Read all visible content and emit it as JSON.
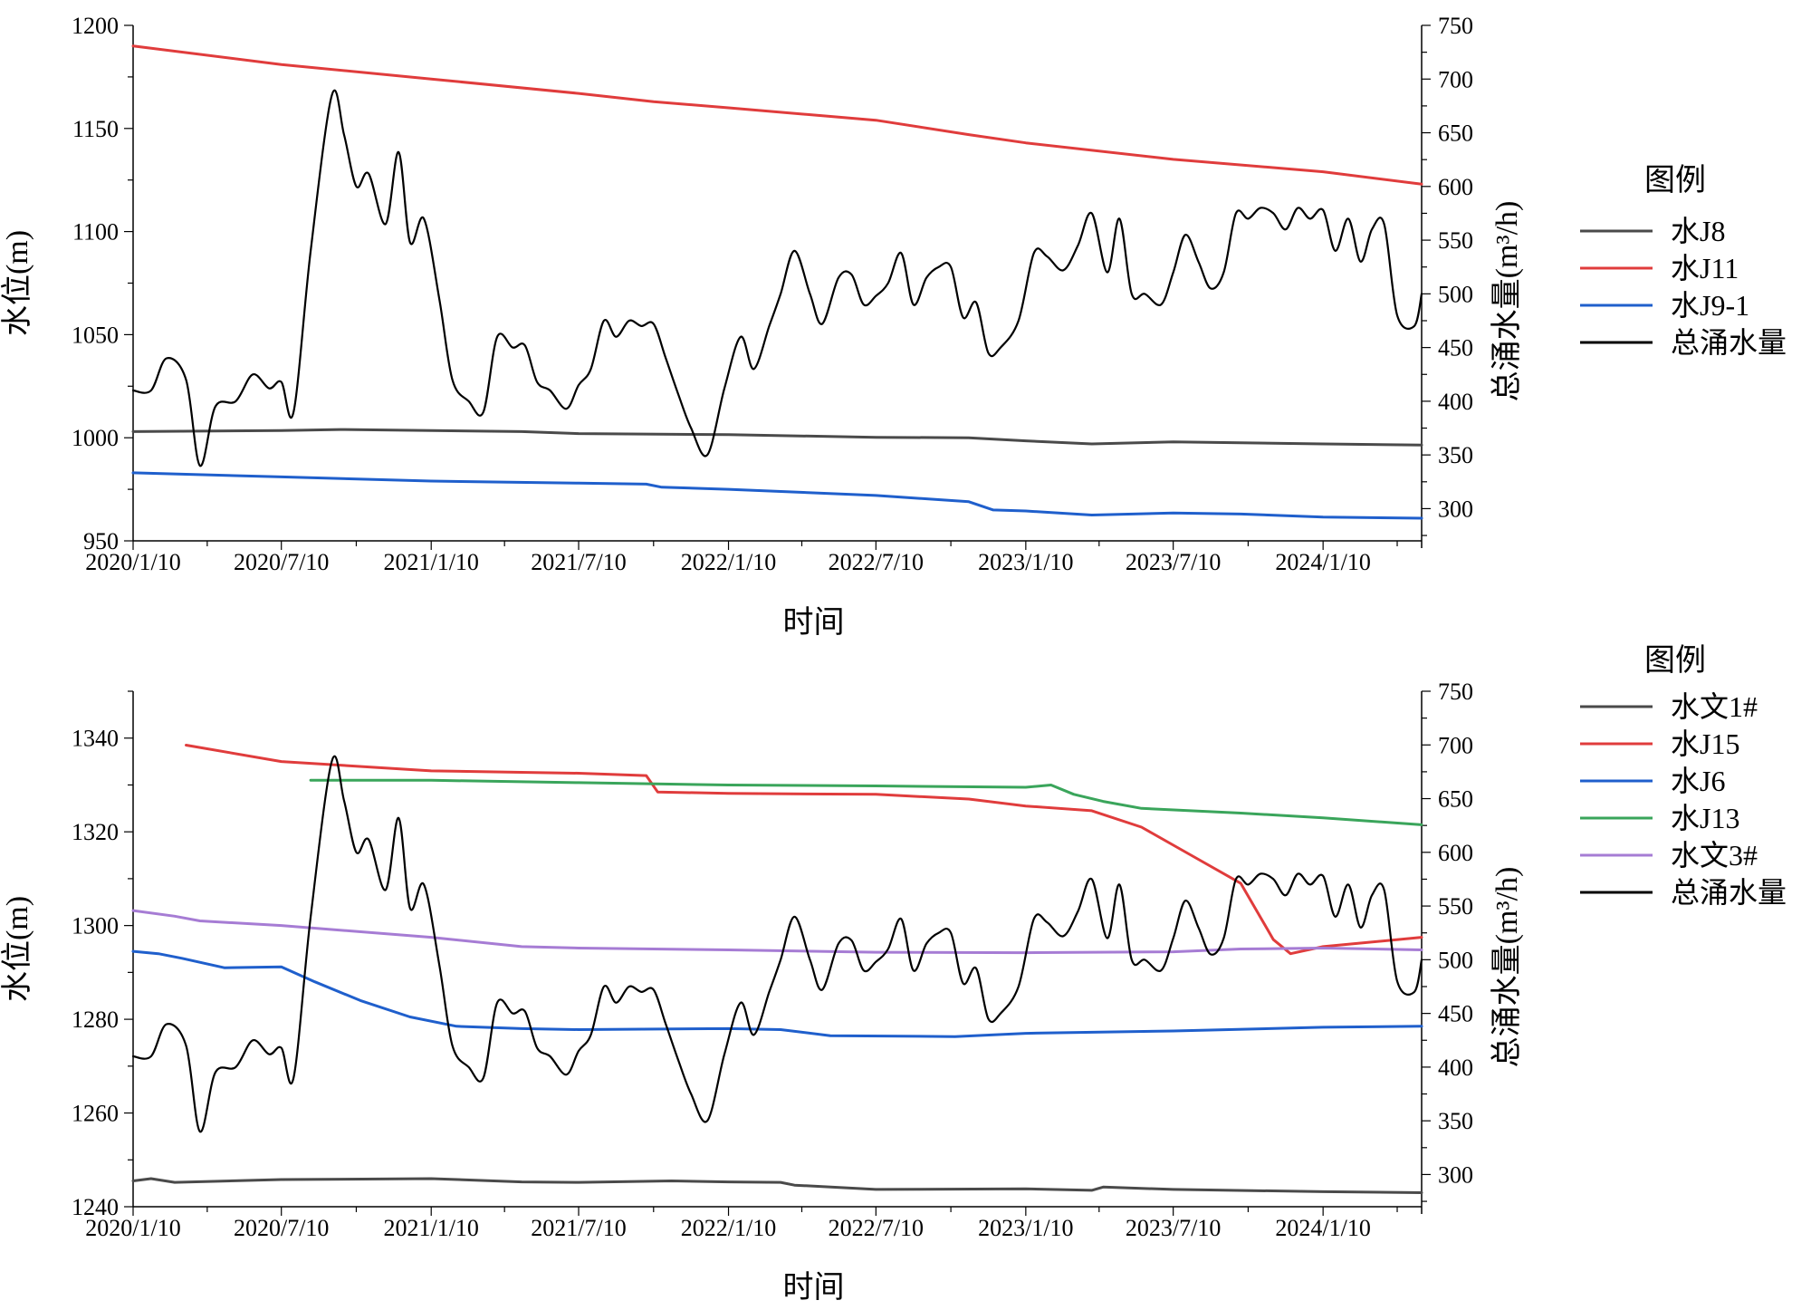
{
  "chart_data": [
    {
      "type": "line",
      "xlabel": "时间",
      "ylabel_left": "水位(m)",
      "ylabel_right": "总涌水量(m³/h)",
      "x_range": [
        "2020-01-10",
        "2024-05-10"
      ],
      "x_ticks": [
        "2020/1/10",
        "2020/7/10",
        "2021/1/10",
        "2021/7/10",
        "2022/1/10",
        "2022/7/10",
        "2023/1/10",
        "2023/7/10",
        "2024/1/10"
      ],
      "ylim_left": [
        950,
        1200
      ],
      "yticks_left": [
        950,
        1000,
        1050,
        1100,
        1150,
        1200
      ],
      "ylim_right": [
        270,
        750
      ],
      "yticks_right": [
        300,
        350,
        400,
        450,
        500,
        550,
        600,
        650,
        700,
        750
      ],
      "legend_title": "图例",
      "legend_position": "right",
      "grid": false,
      "series": [
        {
          "name": "水J8",
          "axis": "left",
          "color": "#4a4a4a",
          "x": [
            "2020-01-10",
            "2020-07-10",
            "2020-09-20",
            "2021-01-10",
            "2021-05-01",
            "2021-07-10",
            "2022-01-10",
            "2022-07-10",
            "2022-11-01",
            "2023-01-10",
            "2023-04-01",
            "2023-07-10",
            "2024-01-10",
            "2024-05-10"
          ],
          "y": [
            1003,
            1003.5,
            1004,
            1003.5,
            1003,
            1002,
            1001.5,
            1000.2,
            1000,
            998.5,
            997,
            998,
            997,
            996.5
          ]
        },
        {
          "name": "水J11",
          "axis": "left",
          "color": "#e03c3c",
          "x": [
            "2020-01-10",
            "2020-07-10",
            "2021-01-10",
            "2021-07-10",
            "2021-10-10",
            "2022-01-10",
            "2022-07-10",
            "2022-11-01",
            "2023-01-10",
            "2023-07-10",
            "2024-01-10",
            "2024-05-10"
          ],
          "y": [
            1190,
            1181,
            1174,
            1167,
            1163,
            1160,
            1154,
            1147,
            1143,
            1135,
            1129,
            1123
          ]
        },
        {
          "name": "水J9-1",
          "axis": "left",
          "color": "#1f5fcc",
          "x": [
            "2020-01-10",
            "2020-07-10",
            "2021-01-10",
            "2021-07-10",
            "2021-10-01",
            "2021-10-20",
            "2022-01-10",
            "2022-07-10",
            "2022-11-01",
            "2022-12-01",
            "2023-01-10",
            "2023-04-01",
            "2023-07-10",
            "2023-10-01",
            "2024-01-10",
            "2024-05-10"
          ],
          "y": [
            983,
            981,
            979,
            978,
            977.5,
            976,
            975,
            972,
            969,
            965,
            964.5,
            962.5,
            963.5,
            963,
            961.5,
            961
          ]
        },
        {
          "name": "总涌水量",
          "axis": "right",
          "color": "#000000",
          "x": [
            "2020-01-10",
            "2020-02-01",
            "2020-02-20",
            "2020-03-15",
            "2020-04-01",
            "2020-04-20",
            "2020-05-15",
            "2020-06-05",
            "2020-06-25",
            "2020-07-10",
            "2020-07-25",
            "2020-08-15",
            "2020-09-10",
            "2020-09-25",
            "2020-10-10",
            "2020-10-25",
            "2020-11-15",
            "2020-12-01",
            "2020-12-15",
            "2021-01-01",
            "2021-01-20",
            "2021-02-05",
            "2021-02-25",
            "2021-03-15",
            "2021-04-01",
            "2021-04-20",
            "2021-05-05",
            "2021-05-20",
            "2021-06-05",
            "2021-06-25",
            "2021-07-10",
            "2021-07-25",
            "2021-08-10",
            "2021-08-25",
            "2021-09-10",
            "2021-09-25",
            "2021-10-10",
            "2021-10-25",
            "2021-11-10",
            "2021-11-25",
            "2021-12-15",
            "2022-01-05",
            "2022-01-25",
            "2022-02-10",
            "2022-03-01",
            "2022-03-15",
            "2022-04-01",
            "2022-04-20",
            "2022-05-05",
            "2022-05-25",
            "2022-06-10",
            "2022-06-25",
            "2022-07-10",
            "2022-07-25",
            "2022-08-10",
            "2022-08-25",
            "2022-09-10",
            "2022-09-25",
            "2022-10-10",
            "2022-10-25",
            "2022-11-10",
            "2022-11-25",
            "2022-12-10",
            "2023-01-01",
            "2023-01-20",
            "2023-02-05",
            "2023-02-25",
            "2023-03-15",
            "2023-04-01",
            "2023-04-20",
            "2023-05-05",
            "2023-05-20",
            "2023-06-05",
            "2023-06-25",
            "2023-07-10",
            "2023-07-25",
            "2023-08-10",
            "2023-08-25",
            "2023-09-10",
            "2023-09-25",
            "2023-10-10",
            "2023-10-25",
            "2023-11-10",
            "2023-11-25",
            "2023-12-10",
            "2023-12-25",
            "2024-01-10",
            "2024-01-25",
            "2024-02-10",
            "2024-02-25",
            "2024-03-10",
            "2024-03-25",
            "2024-04-10",
            "2024-05-01",
            "2024-05-10"
          ],
          "y": [
            410,
            410,
            440,
            420,
            340,
            395,
            400,
            425,
            412,
            418,
            390,
            540,
            685,
            648,
            600,
            612,
            565,
            632,
            548,
            570,
            495,
            420,
            400,
            390,
            460,
            450,
            452,
            418,
            410,
            393,
            415,
            430,
            475,
            460,
            475,
            470,
            472,
            440,
            405,
            375,
            350,
            412,
            460,
            430,
            470,
            500,
            540,
            500,
            472,
            515,
            518,
            490,
            498,
            510,
            538,
            490,
            515,
            525,
            525,
            478,
            492,
            445,
            450,
            475,
            538,
            535,
            522,
            545,
            575,
            520,
            570,
            500,
            500,
            490,
            520,
            555,
            530,
            505,
            520,
            575,
            570,
            580,
            575,
            560,
            580,
            570,
            578,
            540,
            570,
            530,
            560,
            565,
            480,
            470,
            500
          ]
        }
      ]
    },
    {
      "type": "line",
      "xlabel": "时间",
      "ylabel_left": "水位(m)",
      "ylabel_right": "总涌水量(m³/h)",
      "x_range": [
        "2020-01-10",
        "2024-05-10"
      ],
      "x_ticks": [
        "2020/1/10",
        "2020/7/10",
        "2021/1/10",
        "2021/7/10",
        "2022/1/10",
        "2022/7/10",
        "2023/1/10",
        "2023/7/10",
        "2024/1/10"
      ],
      "ylim_left": [
        1240,
        1350
      ],
      "yticks_left": [
        1240,
        1260,
        1280,
        1300,
        1320,
        1340
      ],
      "ylim_right": [
        270,
        750
      ],
      "yticks_right": [
        300,
        350,
        400,
        450,
        500,
        550,
        600,
        650,
        700,
        750
      ],
      "legend_title": "图例",
      "legend_position": "right",
      "grid": false,
      "series": [
        {
          "name": "水文1#",
          "axis": "left",
          "color": "#4a4a4a",
          "x": [
            "2020-01-10",
            "2020-02-01",
            "2020-03-01",
            "2020-07-10",
            "2021-01-10",
            "2021-05-01",
            "2021-07-10",
            "2021-11-01",
            "2022-01-10",
            "2022-03-15",
            "2022-04-01",
            "2022-07-10",
            "2023-01-10",
            "2023-04-01",
            "2023-04-15",
            "2023-07-10",
            "2024-01-10",
            "2024-05-10"
          ],
          "y": [
            1245.5,
            1246,
            1245.2,
            1245.8,
            1246,
            1245.3,
            1245.2,
            1245.5,
            1245.3,
            1245.2,
            1244.6,
            1243.7,
            1243.8,
            1243.5,
            1244.2,
            1243.7,
            1243.2,
            1243
          ]
        },
        {
          "name": "水J15",
          "axis": "left",
          "color": "#e03c3c",
          "x": [
            "2020-03-15",
            "2020-07-10",
            "2021-01-10",
            "2021-07-10",
            "2021-10-01",
            "2021-10-15",
            "2022-01-10",
            "2022-07-10",
            "2022-11-01",
            "2023-01-10",
            "2023-04-01",
            "2023-06-01",
            "2023-08-01",
            "2023-10-01",
            "2023-11-10",
            "2023-12-01",
            "2024-01-10",
            "2024-05-10"
          ],
          "y": [
            1338.5,
            1335,
            1333,
            1332.5,
            1332,
            1328.5,
            1328.2,
            1328,
            1327,
            1325.5,
            1324.5,
            1321,
            1315,
            1309,
            1297,
            1294,
            1295.5,
            1297.5
          ]
        },
        {
          "name": "水J6",
          "axis": "left",
          "color": "#1f5fcc",
          "x": [
            "2020-01-10",
            "2020-02-10",
            "2020-03-10",
            "2020-05-01",
            "2020-07-10",
            "2020-08-20",
            "2020-10-15",
            "2020-12-15",
            "2021-02-10",
            "2021-05-01",
            "2021-07-10",
            "2022-01-10",
            "2022-03-15",
            "2022-05-15",
            "2022-10-15",
            "2023-01-10",
            "2023-07-10",
            "2024-01-10",
            "2024-05-10"
          ],
          "y": [
            1294.5,
            1294,
            1293,
            1291,
            1291.2,
            1288,
            1284,
            1280.5,
            1278.5,
            1278,
            1277.8,
            1278,
            1277.8,
            1276.5,
            1276.3,
            1277,
            1277.5,
            1278.3,
            1278.5
          ]
        },
        {
          "name": "水J13",
          "axis": "left",
          "color": "#3aa55b",
          "x": [
            "2020-08-15",
            "2021-01-10",
            "2021-07-10",
            "2022-01-10",
            "2022-07-10",
            "2023-01-10",
            "2023-02-10",
            "2023-03-10",
            "2023-04-15",
            "2023-06-01",
            "2023-10-01",
            "2024-01-10",
            "2024-05-10"
          ],
          "y": [
            1331,
            1331,
            1330.5,
            1330,
            1329.8,
            1329.5,
            1330,
            1328,
            1326.5,
            1325,
            1324,
            1323,
            1321.5
          ]
        },
        {
          "name": "水文3#",
          "axis": "left",
          "color": "#a67cd4",
          "x": [
            "2020-01-10",
            "2020-03-01",
            "2020-04-01",
            "2020-07-10",
            "2021-01-10",
            "2021-05-01",
            "2021-07-10",
            "2022-01-10",
            "2022-07-10",
            "2023-01-10",
            "2023-07-10",
            "2023-10-01",
            "2024-01-10",
            "2024-05-10"
          ],
          "y": [
            1303.2,
            1302,
            1301,
            1300,
            1297.5,
            1295.5,
            1295.2,
            1294.8,
            1294.3,
            1294.2,
            1294.4,
            1295,
            1295.2,
            1294.8
          ]
        },
        {
          "name": "总涌水量",
          "axis": "right",
          "color": "#000000",
          "x": [
            "2020-01-10",
            "2020-02-01",
            "2020-02-20",
            "2020-03-15",
            "2020-04-01",
            "2020-04-20",
            "2020-05-15",
            "2020-06-05",
            "2020-06-25",
            "2020-07-10",
            "2020-07-25",
            "2020-08-15",
            "2020-09-10",
            "2020-09-25",
            "2020-10-10",
            "2020-10-25",
            "2020-11-15",
            "2020-12-01",
            "2020-12-15",
            "2021-01-01",
            "2021-01-20",
            "2021-02-05",
            "2021-02-25",
            "2021-03-15",
            "2021-04-01",
            "2021-04-20",
            "2021-05-05",
            "2021-05-20",
            "2021-06-05",
            "2021-06-25",
            "2021-07-10",
            "2021-07-25",
            "2021-08-10",
            "2021-08-25",
            "2021-09-10",
            "2021-09-25",
            "2021-10-10",
            "2021-10-25",
            "2021-11-10",
            "2021-11-25",
            "2021-12-15",
            "2022-01-05",
            "2022-01-25",
            "2022-02-10",
            "2022-03-01",
            "2022-03-15",
            "2022-04-01",
            "2022-04-20",
            "2022-05-05",
            "2022-05-25",
            "2022-06-10",
            "2022-06-25",
            "2022-07-10",
            "2022-07-25",
            "2022-08-10",
            "2022-08-25",
            "2022-09-10",
            "2022-09-25",
            "2022-10-10",
            "2022-10-25",
            "2022-11-10",
            "2022-11-25",
            "2022-12-10",
            "2023-01-01",
            "2023-01-20",
            "2023-02-05",
            "2023-02-25",
            "2023-03-15",
            "2023-04-01",
            "2023-04-20",
            "2023-05-05",
            "2023-05-20",
            "2023-06-05",
            "2023-06-25",
            "2023-07-10",
            "2023-07-25",
            "2023-08-10",
            "2023-08-25",
            "2023-09-10",
            "2023-09-25",
            "2023-10-10",
            "2023-10-25",
            "2023-11-10",
            "2023-11-25",
            "2023-12-10",
            "2023-12-25",
            "2024-01-10",
            "2024-01-25",
            "2024-02-10",
            "2024-02-25",
            "2024-03-10",
            "2024-03-25",
            "2024-04-10",
            "2024-05-01",
            "2024-05-10"
          ],
          "y": [
            410,
            410,
            440,
            420,
            340,
            395,
            400,
            425,
            412,
            418,
            390,
            540,
            685,
            648,
            600,
            612,
            565,
            632,
            548,
            570,
            495,
            420,
            400,
            390,
            460,
            450,
            452,
            418,
            410,
            393,
            415,
            430,
            475,
            460,
            475,
            470,
            472,
            440,
            405,
            375,
            350,
            412,
            460,
            430,
            470,
            500,
            540,
            500,
            472,
            515,
            518,
            490,
            498,
            510,
            538,
            490,
            515,
            525,
            525,
            478,
            492,
            445,
            450,
            475,
            538,
            535,
            522,
            545,
            575,
            520,
            570,
            500,
            500,
            490,
            520,
            555,
            530,
            505,
            520,
            575,
            570,
            580,
            575,
            560,
            580,
            570,
            578,
            540,
            570,
            530,
            560,
            565,
            480,
            470,
            500
          ]
        }
      ]
    }
  ]
}
